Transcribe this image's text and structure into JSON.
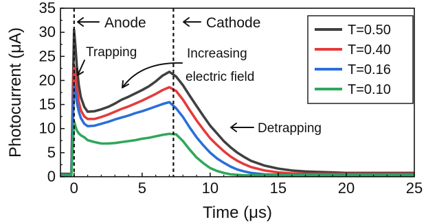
{
  "chart_data": {
    "type": "line",
    "xlabel": "Time (μs)",
    "ylabel": "Photocurrent (μA)",
    "xlim": [
      -1,
      25
    ],
    "ylim": [
      0,
      35
    ],
    "xticks": [
      0,
      5,
      10,
      15,
      20,
      25
    ],
    "yticks": [
      0,
      5,
      10,
      15,
      20,
      25,
      30,
      35
    ],
    "grid": false,
    "legend_position": "top-right",
    "series": [
      {
        "name": "T=0.50",
        "color": "#404040",
        "x": [
          -1,
          -0.2,
          0,
          0.1,
          0.2,
          0.35,
          0.5,
          0.75,
          1.0,
          1.5,
          2,
          2.5,
          3,
          3.5,
          4,
          4.5,
          5,
          5.5,
          6,
          6.5,
          7,
          7.5,
          8,
          8.5,
          9,
          9.5,
          10,
          10.5,
          11,
          11.5,
          12,
          12.5,
          13,
          14,
          15,
          16,
          17,
          18,
          19,
          20,
          21,
          22,
          23,
          24,
          25
        ],
        "y": [
          0.6,
          0.6,
          30.5,
          27,
          23,
          19,
          16.5,
          14.5,
          13.5,
          13.6,
          14.0,
          14.5,
          15.2,
          16.0,
          16.6,
          17.3,
          18.0,
          18.8,
          19.8,
          21.0,
          21.8,
          20.8,
          19.0,
          16.8,
          14.7,
          12.6,
          10.6,
          9.0,
          7.4,
          6.1,
          5.0,
          4.1,
          3.3,
          2.3,
          1.7,
          1.3,
          1.1,
          1.0,
          0.9,
          0.8,
          0.8,
          0.8,
          0.8,
          0.8,
          0.8
        ]
      },
      {
        "name": "T=0.40",
        "color": "#e53b3b",
        "x": [
          -1,
          -0.2,
          0,
          0.1,
          0.2,
          0.35,
          0.5,
          0.75,
          1.0,
          1.5,
          2,
          2.5,
          3,
          3.5,
          4,
          4.5,
          5,
          5.5,
          6,
          6.5,
          7,
          7.5,
          8,
          8.5,
          9,
          9.5,
          10,
          10.5,
          11,
          11.5,
          12,
          12.5,
          13,
          14,
          15,
          16,
          17,
          18,
          19,
          20,
          21,
          22,
          23,
          24,
          25
        ],
        "y": [
          0.5,
          0.5,
          23,
          21,
          18.5,
          15.5,
          13.8,
          12.5,
          12.0,
          12.0,
          12.4,
          12.9,
          13.5,
          14.1,
          14.6,
          15.2,
          15.8,
          16.5,
          17.2,
          18.0,
          18.6,
          17.8,
          16.0,
          13.8,
          11.7,
          9.8,
          8.0,
          6.6,
          5.3,
          4.2,
          3.3,
          2.6,
          2.0,
          1.3,
          0.9,
          0.7,
          0.6,
          0.6,
          0.6,
          0.6,
          0.6,
          0.6,
          0.6,
          0.6,
          0.6
        ]
      },
      {
        "name": "T=0.16",
        "color": "#2a6fd9",
        "x": [
          -1,
          -0.2,
          0,
          0.1,
          0.2,
          0.35,
          0.5,
          0.75,
          1.0,
          1.5,
          2,
          2.5,
          3,
          3.5,
          4,
          4.5,
          5,
          5.5,
          6,
          6.5,
          7,
          7.5,
          8,
          8.5,
          9,
          9.5,
          10,
          10.5,
          11,
          11.5,
          12,
          12.5,
          13,
          14,
          15,
          16,
          17,
          18,
          19,
          20,
          21,
          22,
          23,
          24,
          25
        ],
        "y": [
          0.4,
          0.4,
          19,
          17.5,
          15.5,
          13.5,
          12.2,
          11.0,
          10.5,
          10.6,
          11.0,
          11.4,
          11.9,
          12.3,
          12.7,
          13.2,
          13.6,
          14.1,
          14.6,
          15.1,
          15.5,
          14.2,
          12.4,
          10.2,
          8.2,
          6.5,
          5.0,
          3.8,
          2.9,
          2.1,
          1.5,
          1.1,
          0.8,
          0.5,
          0.4,
          0.4,
          0.4,
          0.4,
          0.4,
          0.4,
          0.4,
          0.4,
          0.4,
          0.4,
          0.4
        ]
      },
      {
        "name": "T=0.10",
        "color": "#2ea85a",
        "x": [
          -1,
          -0.2,
          0,
          0.1,
          0.2,
          0.35,
          0.5,
          0.75,
          1.0,
          1.5,
          2,
          2.5,
          3,
          3.5,
          4,
          4.5,
          5,
          5.5,
          6,
          6.5,
          7,
          7.5,
          8,
          8.5,
          9,
          9.5,
          10,
          10.5,
          11,
          11.5,
          12,
          12.5,
          13,
          14,
          15,
          16,
          17,
          18,
          19,
          20,
          21,
          22,
          23,
          24,
          25
        ],
        "y": [
          0.3,
          0.3,
          11.5,
          10.5,
          9.6,
          9.0,
          8.6,
          8.2,
          7.6,
          7.2,
          6.9,
          6.9,
          7.0,
          7.2,
          7.4,
          7.6,
          7.9,
          8.1,
          8.4,
          8.7,
          8.9,
          8.8,
          7.4,
          5.6,
          4.0,
          2.8,
          1.8,
          1.2,
          0.8,
          0.5,
          0.4,
          0.3,
          0.3,
          0.3,
          0.3,
          0.3,
          0.3,
          0.3,
          0.3,
          0.3,
          0.3,
          0.3,
          0.3,
          0.3,
          0.3
        ]
      }
    ],
    "vlines": [
      0,
      7.3
    ],
    "annotations": [
      {
        "text": "Anode"
      },
      {
        "text": "Cathode"
      },
      {
        "text": "Trapping"
      },
      {
        "text": "Increasing"
      },
      {
        "text": "electric field"
      },
      {
        "text": "Detrapping"
      }
    ]
  }
}
